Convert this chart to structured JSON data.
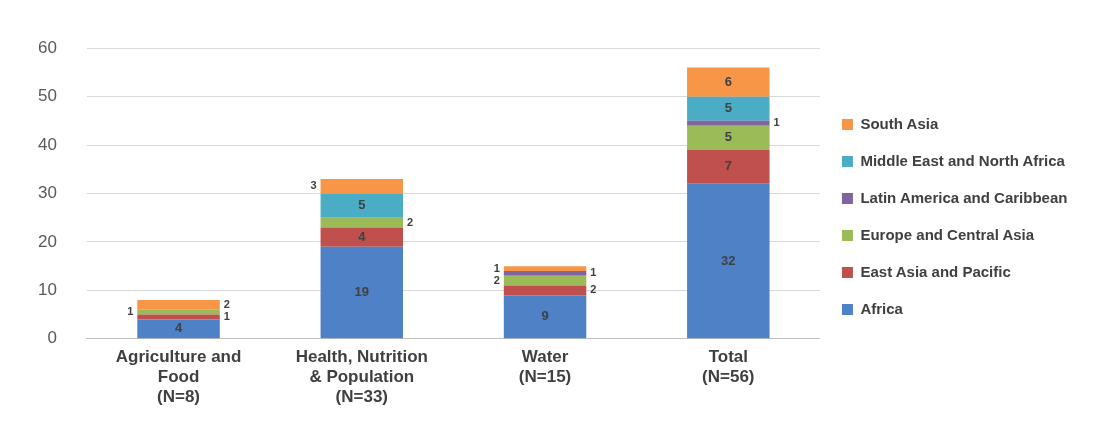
{
  "chart_data": {
    "type": "bar",
    "stacked": true,
    "categories": [
      "Agriculture and\nFood\n(N=8)",
      "Health, Nutrition\n& Population\n(N=33)",
      "Water\n(N=15)",
      "Total\n(N=56)"
    ],
    "series": [
      {
        "name": "Africa",
        "color": "#4f81c7",
        "values": [
          4,
          19,
          9,
          32
        ],
        "value_labels": [
          "4",
          "19",
          "9",
          "32"
        ]
      },
      {
        "name": "East Asia and Pacific",
        "color": "#c0504d",
        "values": [
          1,
          4,
          2,
          7
        ],
        "value_labels": [
          "1",
          "4",
          "2",
          "7"
        ]
      },
      {
        "name": "Europe and Central Asia",
        "color": "#9bbb59",
        "values": [
          1,
          2,
          2,
          5
        ],
        "value_labels": [
          "1",
          "2",
          "2",
          "5"
        ]
      },
      {
        "name": "Latin America and Caribbean",
        "color": "#8064a2",
        "values": [
          0,
          0,
          1,
          1
        ],
        "value_labels": [
          null,
          null,
          "1",
          "1"
        ]
      },
      {
        "name": "Middle East and North Africa",
        "color": "#4bacc6",
        "values": [
          0,
          5,
          0,
          5
        ],
        "value_labels": [
          null,
          "5",
          null,
          "5"
        ]
      },
      {
        "name": "South Asia",
        "color": "#f79646",
        "values": [
          2,
          3,
          1,
          6
        ],
        "value_labels": [
          "2",
          "3",
          "1",
          "6"
        ]
      }
    ],
    "ylim": [
      0,
      60
    ],
    "yticks": [
      0,
      10,
      20,
      30,
      40,
      50,
      60
    ],
    "grid": "y",
    "legend": "right"
  }
}
